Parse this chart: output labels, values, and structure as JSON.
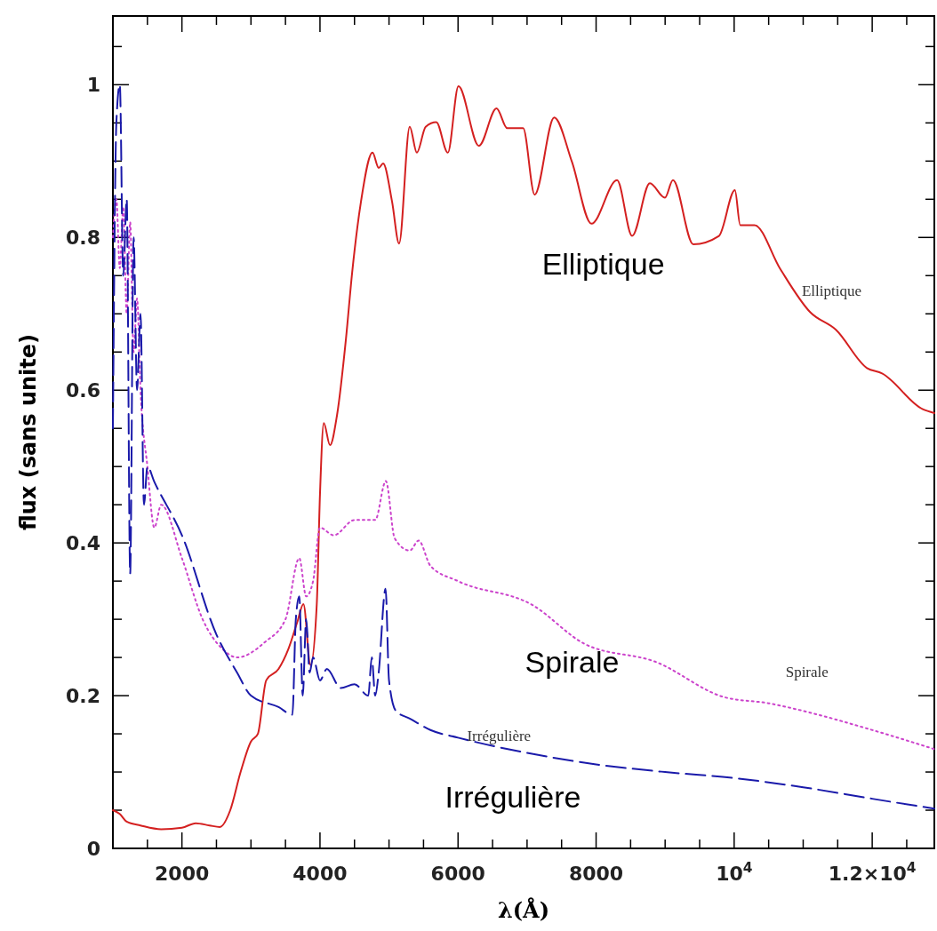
{
  "chart_data": {
    "type": "line",
    "xlabel": "λ(Å)",
    "ylabel": "flux (sans unite)",
    "xlim": [
      1000,
      12900
    ],
    "ylim": [
      0,
      1.09
    ],
    "xticks": [
      {
        "value": 1500,
        "label": null
      },
      2000,
      {
        "value": 2500,
        "label": null
      },
      {
        "value": 3000,
        "label": null
      },
      {
        "value": 3500,
        "label": null
      },
      4000,
      {
        "value": 4500,
        "label": null
      },
      {
        "value": 5000,
        "label": null
      },
      {
        "value": 5500,
        "label": null
      },
      6000,
      {
        "value": 6500,
        "label": null
      },
      {
        "value": 7000,
        "label": null
      },
      {
        "value": 7500,
        "label": null
      },
      8000,
      {
        "value": 8500,
        "label": null
      },
      {
        "value": 9000,
        "label": null
      },
      {
        "value": 9500,
        "label": null
      },
      {
        "value": 10000,
        "label": "10$^{4}$"
      },
      {
        "value": 10500,
        "label": null
      },
      {
        "value": 11000,
        "label": null
      },
      {
        "value": 11500,
        "label": null
      },
      {
        "value": 12000,
        "label": "1.2×10$^{4}$"
      },
      {
        "value": 12500,
        "label": null
      }
    ],
    "yticks": [
      0,
      {
        "value": 0.05,
        "label": null
      },
      {
        "value": 0.1,
        "label": null
      },
      {
        "value": 0.15,
        "label": null
      },
      0.2,
      {
        "value": 0.25,
        "label": null
      },
      {
        "value": 0.3,
        "label": null
      },
      {
        "value": 0.35,
        "label": null
      },
      0.4,
      {
        "value": 0.45,
        "label": null
      },
      {
        "value": 0.5,
        "label": null
      },
      {
        "value": 0.55,
        "label": null
      },
      0.6,
      {
        "value": 0.65,
        "label": null
      },
      {
        "value": 0.7,
        "label": null
      },
      {
        "value": 0.75,
        "label": null
      },
      0.8,
      {
        "value": 0.85,
        "label": null
      },
      {
        "value": 0.9,
        "label": null
      },
      {
        "value": 0.95,
        "label": null
      },
      1,
      {
        "value": 1.05,
        "label": null
      }
    ],
    "grid": false,
    "marker": "none",
    "series": [
      {
        "name": "Elliptique",
        "color": "#d42020",
        "line_style": "solid",
        "x": [
          1000,
          1100,
          1200,
          1400,
          1700,
          2000,
          2200,
          2400,
          2550,
          2700,
          2850,
          3000,
          3100,
          3221,
          3400,
          3542,
          3670,
          3760,
          3863,
          3953,
          4000,
          4055,
          4145,
          4248,
          4376,
          4466,
          4594,
          4761,
          4851,
          4915,
          5044,
          5146,
          5300,
          5403,
          5531,
          5685,
          5852,
          6006,
          6302,
          6558,
          6712,
          6943,
          7110,
          7393,
          7650,
          7932,
          8304,
          8522,
          8779,
          8997,
          9113,
          9408,
          9780,
          10011,
          10088,
          10294,
          10666,
          11103,
          11475,
          11924,
          12143,
          12733,
          12900
        ],
        "values": [
          0.05,
          0.045,
          0.035,
          0.03,
          0.025,
          0.027,
          0.033,
          0.03,
          0.028,
          0.05,
          0.1,
          0.14,
          0.15,
          0.22,
          0.235,
          0.261,
          0.296,
          0.32,
          0.24,
          0.319,
          0.464,
          0.557,
          0.528,
          0.568,
          0.667,
          0.754,
          0.847,
          0.911,
          0.891,
          0.897,
          0.847,
          0.792,
          0.945,
          0.911,
          0.945,
          0.951,
          0.911,
          0.998,
          0.92,
          0.969,
          0.943,
          0.943,
          0.856,
          0.957,
          0.899,
          0.818,
          0.875,
          0.802,
          0.871,
          0.852,
          0.875,
          0.791,
          0.802,
          0.862,
          0.816,
          0.816,
          0.759,
          0.702,
          0.679,
          0.629,
          0.622,
          0.575,
          0.57
        ]
      },
      {
        "name": "Spirale",
        "color": "#cc44cc",
        "line_style": "dotted",
        "x": [
          1000,
          1050,
          1100,
          1150,
          1200,
          1250,
          1300,
          1350,
          1400,
          1500,
          1600,
          1700,
          2000,
          2300,
          2600,
          2800,
          3200,
          3500,
          3700,
          3800,
          3900,
          4000,
          4200,
          4500,
          4800,
          4954,
          5082,
          5300,
          5430,
          5600,
          6000,
          7072,
          7829,
          8869,
          9857,
          10500,
          11000,
          12000,
          12900
        ],
        "values": [
          0.8,
          0.85,
          0.76,
          0.84,
          0.7,
          0.82,
          0.65,
          0.72,
          0.6,
          0.5,
          0.42,
          0.45,
          0.38,
          0.3,
          0.26,
          0.25,
          0.27,
          0.3,
          0.38,
          0.33,
          0.35,
          0.42,
          0.41,
          0.43,
          0.43,
          0.481,
          0.406,
          0.39,
          0.403,
          0.37,
          0.35,
          0.319,
          0.268,
          0.244,
          0.198,
          0.19,
          0.18,
          0.155,
          0.13
        ]
      },
      {
        "name": "Irrégulière",
        "color": "#1a1aaa",
        "line_style": "dashed",
        "x": [
          1000,
          1050,
          1100,
          1150,
          1200,
          1250,
          1300,
          1350,
          1400,
          1450,
          1500,
          1600,
          2000,
          2500,
          2800,
          3000,
          3400,
          3600,
          3650,
          3700,
          3750,
          3800,
          3850,
          3900,
          4000,
          4100,
          4300,
          4500,
          4700,
          4750,
          4800,
          4850,
          4950,
          5000,
          5100,
          5300,
          5600,
          6000,
          7000,
          8000,
          9000,
          10011,
          11000,
          12000,
          12900
        ],
        "values": [
          0.55,
          0.95,
          1.0,
          0.75,
          0.85,
          0.36,
          0.8,
          0.6,
          0.7,
          0.45,
          0.5,
          0.48,
          0.41,
          0.28,
          0.23,
          0.2,
          0.185,
          0.175,
          0.3,
          0.33,
          0.2,
          0.3,
          0.23,
          0.25,
          0.22,
          0.235,
          0.21,
          0.215,
          0.2,
          0.25,
          0.2,
          0.23,
          0.34,
          0.22,
          0.18,
          0.17,
          0.155,
          0.145,
          0.125,
          0.11,
          0.1,
          0.092,
          0.08,
          0.065,
          0.052
        ]
      }
    ],
    "annotations": [
      "Elliptique",
      "Spirale",
      "Irrégulière"
    ]
  }
}
